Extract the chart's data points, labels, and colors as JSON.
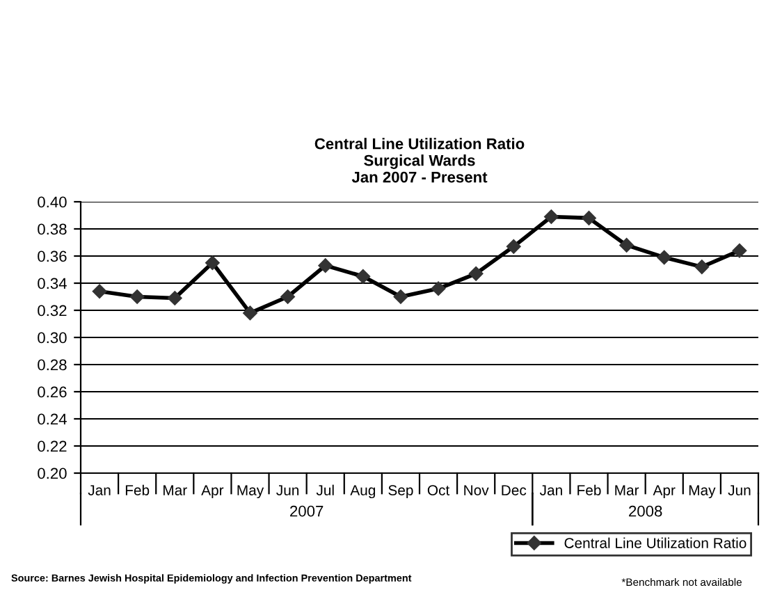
{
  "chart_data": {
    "type": "line",
    "title": "Central Line Utilization Ratio\nSurgical Wards\nJan 2007 - Present",
    "categories": [
      "Jan",
      "Feb",
      "Mar",
      "Apr",
      "May",
      "Jun",
      "Jul",
      "Aug",
      "Sep",
      "Oct",
      "Nov",
      "Dec",
      "Jan",
      "Feb",
      "Mar",
      "Apr",
      "May",
      "Jun"
    ],
    "series": [
      {
        "name": "Central Line Utilization Ratio",
        "color": "#000000",
        "values": [
          0.334,
          0.33,
          0.329,
          0.355,
          0.318,
          0.33,
          0.353,
          0.345,
          0.33,
          0.336,
          0.347,
          0.367,
          0.389,
          0.388,
          0.368,
          0.359,
          0.352,
          0.364
        ]
      }
    ],
    "ylim": [
      0.2,
      0.4
    ],
    "yticks": [
      {
        "value": 0.2,
        "label": "0.20"
      },
      {
        "value": 0.22,
        "label": "0.22"
      },
      {
        "value": 0.24,
        "label": "0.24"
      },
      {
        "value": 0.26,
        "label": "0.26"
      },
      {
        "value": 0.28,
        "label": "0.28"
      },
      {
        "value": 0.3,
        "label": "0.30"
      },
      {
        "value": 0.32,
        "label": "0.32"
      },
      {
        "value": 0.34,
        "label": "0.34"
      },
      {
        "value": 0.36,
        "label": "0.36"
      },
      {
        "value": 0.38,
        "label": "0.38"
      },
      {
        "value": 0.4,
        "label": "0.40"
      }
    ],
    "grid": "y",
    "legend": "bottom right",
    "marker": "diamond",
    "line_style": "solid",
    "annotations": [
      "2007",
      "2008",
      "Source: Barnes Jewish Hospital Epidemiology and Infection Prevention Department",
      "*Benchmark not available"
    ]
  }
}
